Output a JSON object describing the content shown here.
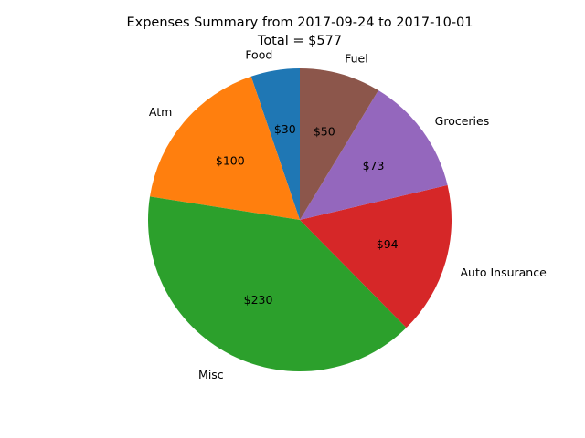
{
  "chart_data": {
    "type": "pie",
    "title": "Expenses Summary from 2017-09-24 to 2017-10-01",
    "subtitle": "Total = $577",
    "start_angle_deg": 90,
    "direction": "counterclockwise",
    "slices": [
      {
        "label": "Food",
        "value": 30,
        "value_label": "$30",
        "color": "#1f77b4"
      },
      {
        "label": "Atm",
        "value": 100,
        "value_label": "$100",
        "color": "#ff7f0e"
      },
      {
        "label": "Misc",
        "value": 230,
        "value_label": "$230",
        "color": "#2ca02c"
      },
      {
        "label": "Auto Insurance",
        "value": 94,
        "value_label": "$94",
        "color": "#d62728"
      },
      {
        "label": "Groceries",
        "value": 73,
        "value_label": "$73",
        "color": "#9467bd"
      },
      {
        "label": "Fuel",
        "value": 50,
        "value_label": "$50",
        "color": "#8c564b"
      }
    ]
  }
}
